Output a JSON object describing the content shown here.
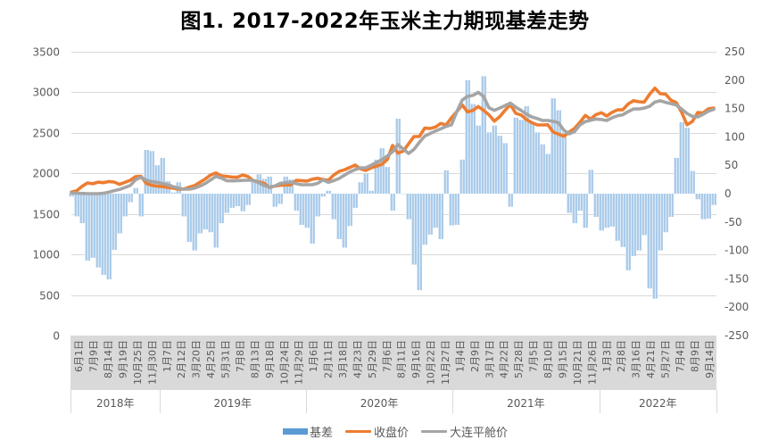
{
  "title": "图1. 2017-2022年玉米主力期现基差走势",
  "legend": {
    "basis": "基差",
    "close": "收盘价",
    "flat": "大连平舱价"
  },
  "colors": {
    "basis": "#9DC3E6",
    "close": "#ED7D31",
    "flat": "#A5A5A5",
    "grid": "#D9D9D9",
    "axis_band": "#D9D9D9",
    "text": "#595959"
  },
  "chart_data": {
    "type": "line",
    "title": "图1. 2017-2022年玉米主力期现基差走势",
    "xlabel": "",
    "ylabel": "",
    "grid": true,
    "legend_position": "bottom",
    "left_axis": {
      "min": 0,
      "max": 3500,
      "ticks": [
        0,
        500,
        1000,
        1500,
        2000,
        2500,
        3000,
        3500
      ]
    },
    "right_axis": {
      "min": -250,
      "max": 250,
      "ticks": [
        -250,
        -200,
        -150,
        -100,
        -50,
        0,
        50,
        100,
        150,
        200,
        250
      ]
    },
    "x_tick_labels": [
      "6月1日",
      "7月9日",
      "8月14日",
      "9月19日",
      "10月25日",
      "11月30日",
      "1月7日",
      "2月12日",
      "3月20日",
      "4月25日",
      "5月31日",
      "7月8日",
      "8月13日",
      "9月18日",
      "10月24日",
      "11月29日",
      "1月6日",
      "2月11日",
      "3月18日",
      "4月23日",
      "5月29日",
      "7月6日",
      "8月11日",
      "9月16日",
      "10月22日",
      "11月27日",
      "1月4日",
      "2月9日",
      "3月17日",
      "4月22日",
      "5月28日",
      "7月5日",
      "8月10日",
      "9月15日",
      "10月21日",
      "11月26日",
      "1月3日",
      "2月8日",
      "3月16日",
      "4月21日",
      "5月27日",
      "7月4日",
      "8月9日",
      "9月14日"
    ],
    "x_groups": [
      {
        "label": "2018年",
        "count": 6
      },
      {
        "label": "2019年",
        "count": 10
      },
      {
        "label": "2020年",
        "count": 10
      },
      {
        "label": "2021年",
        "count": 10
      },
      {
        "label": "2022年",
        "count": 8
      }
    ],
    "n_points": 121,
    "series": [
      {
        "name": "基差",
        "render": "bar",
        "axis": "right",
        "values": [
          -5,
          -40,
          -52,
          -118,
          -113,
          -130,
          -143,
          -151,
          -99,
          -70,
          -40,
          -15,
          10,
          -40,
          77,
          75,
          50,
          63,
          22,
          2,
          20,
          -40,
          -85,
          -100,
          -70,
          -63,
          -68,
          -95,
          -52,
          -34,
          -25,
          -22,
          -31,
          -20,
          25,
          34,
          26,
          30,
          -23,
          -18,
          30,
          25,
          -30,
          -55,
          -60,
          -88,
          -40,
          -5,
          5,
          -45,
          -80,
          -95,
          -57,
          -25,
          20,
          35,
          5,
          60,
          80,
          47,
          -30,
          132,
          0,
          -45,
          -125,
          -170,
          -90,
          -72,
          -60,
          -80,
          41,
          -56,
          -55,
          60,
          200,
          158,
          120,
          207,
          108,
          120,
          102,
          89,
          -23,
          134,
          130,
          154,
          126,
          108,
          87,
          70,
          168,
          147,
          108,
          -34,
          -52,
          -30,
          -60,
          42,
          -41,
          -65,
          -60,
          -58,
          -83,
          -94,
          -135,
          -110,
          -100,
          -73,
          -167,
          -185,
          -100,
          -68,
          -41,
          63,
          126,
          116,
          40,
          -10,
          -45,
          -44,
          -20
        ]
      },
      {
        "name": "收盘价",
        "render": "line",
        "axis": "left",
        "values": [
          1770,
          1785,
          1840,
          1882,
          1872,
          1892,
          1885,
          1900,
          1893,
          1865,
          1890,
          1915,
          1960,
          1965,
          1875,
          1853,
          1843,
          1837,
          1827,
          1818,
          1806,
          1806,
          1830,
          1849,
          1890,
          1930,
          1980,
          2005,
          1970,
          1962,
          1955,
          1952,
          1980,
          1960,
          1910,
          1895,
          1875,
          1827,
          1843,
          1853,
          1857,
          1858,
          1915,
          1911,
          1905,
          1928,
          1939,
          1925,
          1915,
          1980,
          2024,
          2044,
          2072,
          2102,
          2056,
          2036,
          2069,
          2090,
          2112,
          2169,
          2344,
          2250,
          2275,
          2366,
          2454,
          2454,
          2558,
          2554,
          2571,
          2616,
          2597,
          2687,
          2762,
          2845,
          2758,
          2776,
          2825,
          2778,
          2723,
          2645,
          2699,
          2777,
          2850,
          2742,
          2720,
          2663,
          2626,
          2599,
          2598,
          2600,
          2509,
          2484,
          2458,
          2509,
          2556,
          2630,
          2714,
          2670,
          2725,
          2748,
          2707,
          2753,
          2784,
          2784,
          2856,
          2897,
          2884,
          2879,
          2975,
          3051,
          2983,
          2976,
          2903,
          2873,
          2753,
          2600,
          2640,
          2751,
          2746,
          2797,
          2806
        ]
      },
      {
        "name": "大连平舱价",
        "render": "line",
        "axis": "left",
        "values": [
          1760,
          1756,
          1753,
          1750,
          1750,
          1750,
          1754,
          1769,
          1787,
          1802,
          1826,
          1851,
          1923,
          1952,
          1915,
          1897,
          1890,
          1875,
          1860,
          1837,
          1819,
          1805,
          1805,
          1818,
          1843,
          1875,
          1919,
          1963,
          1943,
          1910,
          1907,
          1911,
          1914,
          1915,
          1915,
          1885,
          1850,
          1832,
          1844,
          1877,
          1885,
          1891,
          1874,
          1860,
          1860,
          1860,
          1878,
          1920,
          1890,
          1911,
          1937,
          1978,
          2018,
          2046,
          2069,
          2069,
          2101,
          2135,
          2168,
          2214,
          2267,
          2355,
          2300,
          2245,
          2297,
          2383,
          2460,
          2492,
          2521,
          2549,
          2580,
          2600,
          2762,
          2903,
          2950,
          2962,
          2999,
          2950,
          2809,
          2778,
          2805,
          2835,
          2867,
          2817,
          2777,
          2731,
          2697,
          2677,
          2652,
          2652,
          2642,
          2624,
          2532,
          2487,
          2516,
          2597,
          2639,
          2656,
          2670,
          2665,
          2652,
          2685,
          2711,
          2723,
          2762,
          2795,
          2795,
          2806,
          2826,
          2879,
          2896,
          2876,
          2861,
          2843,
          2792,
          2738,
          2703,
          2696,
          2729,
          2768,
          2790
        ]
      }
    ]
  }
}
